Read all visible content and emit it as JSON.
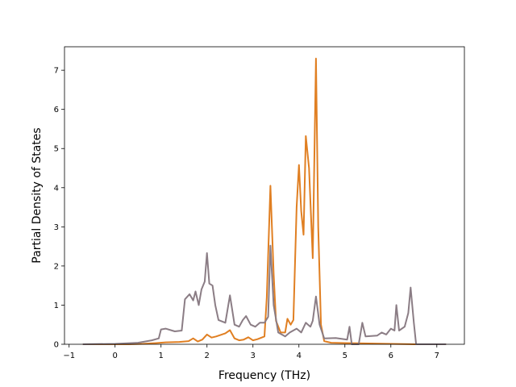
{
  "chart_data": {
    "type": "line",
    "title": "",
    "xlabel": "Frequency (THz)",
    "ylabel": "Partial Density of States",
    "xlim": [
      -1.1,
      7.6
    ],
    "ylim": [
      0,
      7.6
    ],
    "xticks": [
      -1,
      0,
      1,
      2,
      3,
      4,
      5,
      6,
      7
    ],
    "yticks": [
      0,
      1,
      2,
      3,
      4,
      5,
      6,
      7
    ],
    "grid": false,
    "legend": "none",
    "series": [
      {
        "color": "#e07f22",
        "points": [
          [
            -0.7,
            0
          ],
          [
            0.3,
            0
          ],
          [
            0.6,
            0.01
          ],
          [
            0.9,
            0.03
          ],
          [
            1.1,
            0.05
          ],
          [
            1.4,
            0.06
          ],
          [
            1.6,
            0.08
          ],
          [
            1.7,
            0.15
          ],
          [
            1.8,
            0.07
          ],
          [
            1.9,
            0.12
          ],
          [
            2.0,
            0.25
          ],
          [
            2.1,
            0.17
          ],
          [
            2.2,
            0.2
          ],
          [
            2.4,
            0.28
          ],
          [
            2.5,
            0.36
          ],
          [
            2.6,
            0.15
          ],
          [
            2.7,
            0.1
          ],
          [
            2.8,
            0.12
          ],
          [
            2.9,
            0.18
          ],
          [
            3.0,
            0.1
          ],
          [
            3.1,
            0.13
          ],
          [
            3.25,
            0.2
          ],
          [
            3.3,
            1.2
          ],
          [
            3.38,
            4.05
          ],
          [
            3.45,
            1.8
          ],
          [
            3.5,
            0.6
          ],
          [
            3.6,
            0.3
          ],
          [
            3.7,
            0.3
          ],
          [
            3.75,
            0.65
          ],
          [
            3.82,
            0.5
          ],
          [
            3.88,
            0.62
          ],
          [
            3.95,
            3.5
          ],
          [
            4.0,
            4.58
          ],
          [
            4.05,
            3.4
          ],
          [
            4.1,
            2.8
          ],
          [
            4.15,
            5.32
          ],
          [
            4.22,
            4.5
          ],
          [
            4.3,
            2.2
          ],
          [
            4.37,
            7.3
          ],
          [
            4.42,
            3.0
          ],
          [
            4.48,
            0.5
          ],
          [
            4.55,
            0.08
          ],
          [
            4.7,
            0.04
          ],
          [
            5.0,
            0.03
          ],
          [
            5.5,
            0.02
          ],
          [
            6.0,
            0.01
          ],
          [
            6.5,
            0
          ],
          [
            7.2,
            0
          ]
        ]
      },
      {
        "color": "#8b7d85",
        "points": [
          [
            -0.7,
            0
          ],
          [
            0,
            0.01
          ],
          [
            0.5,
            0.04
          ],
          [
            0.8,
            0.1
          ],
          [
            0.95,
            0.15
          ],
          [
            1.0,
            0.38
          ],
          [
            1.1,
            0.4
          ],
          [
            1.3,
            0.33
          ],
          [
            1.45,
            0.35
          ],
          [
            1.52,
            1.15
          ],
          [
            1.62,
            1.28
          ],
          [
            1.7,
            1.12
          ],
          [
            1.75,
            1.35
          ],
          [
            1.82,
            1.0
          ],
          [
            1.88,
            1.4
          ],
          [
            1.95,
            1.6
          ],
          [
            2.0,
            2.33
          ],
          [
            2.05,
            1.55
          ],
          [
            2.12,
            1.5
          ],
          [
            2.18,
            1.0
          ],
          [
            2.25,
            0.62
          ],
          [
            2.4,
            0.55
          ],
          [
            2.5,
            1.25
          ],
          [
            2.6,
            0.5
          ],
          [
            2.7,
            0.45
          ],
          [
            2.78,
            0.62
          ],
          [
            2.85,
            0.72
          ],
          [
            2.95,
            0.5
          ],
          [
            3.05,
            0.45
          ],
          [
            3.15,
            0.55
          ],
          [
            3.25,
            0.55
          ],
          [
            3.33,
            0.7
          ],
          [
            3.38,
            2.52
          ],
          [
            3.45,
            1.0
          ],
          [
            3.55,
            0.3
          ],
          [
            3.7,
            0.2
          ],
          [
            3.8,
            0.3
          ],
          [
            3.95,
            0.4
          ],
          [
            4.05,
            0.3
          ],
          [
            4.15,
            0.55
          ],
          [
            4.25,
            0.45
          ],
          [
            4.3,
            0.6
          ],
          [
            4.37,
            1.22
          ],
          [
            4.45,
            0.5
          ],
          [
            4.55,
            0.15
          ],
          [
            4.8,
            0.16
          ],
          [
            5.05,
            0.12
          ],
          [
            5.1,
            0.45
          ],
          [
            5.15,
            0
          ],
          [
            5.3,
            0
          ],
          [
            5.38,
            0.55
          ],
          [
            5.45,
            0.2
          ],
          [
            5.7,
            0.22
          ],
          [
            5.8,
            0.3
          ],
          [
            5.9,
            0.25
          ],
          [
            6.0,
            0.4
          ],
          [
            6.08,
            0.35
          ],
          [
            6.12,
            1.0
          ],
          [
            6.18,
            0.35
          ],
          [
            6.3,
            0.45
          ],
          [
            6.38,
            0.8
          ],
          [
            6.43,
            1.45
          ],
          [
            6.5,
            0.55
          ],
          [
            6.55,
            0
          ],
          [
            7.2,
            0
          ]
        ]
      }
    ]
  }
}
